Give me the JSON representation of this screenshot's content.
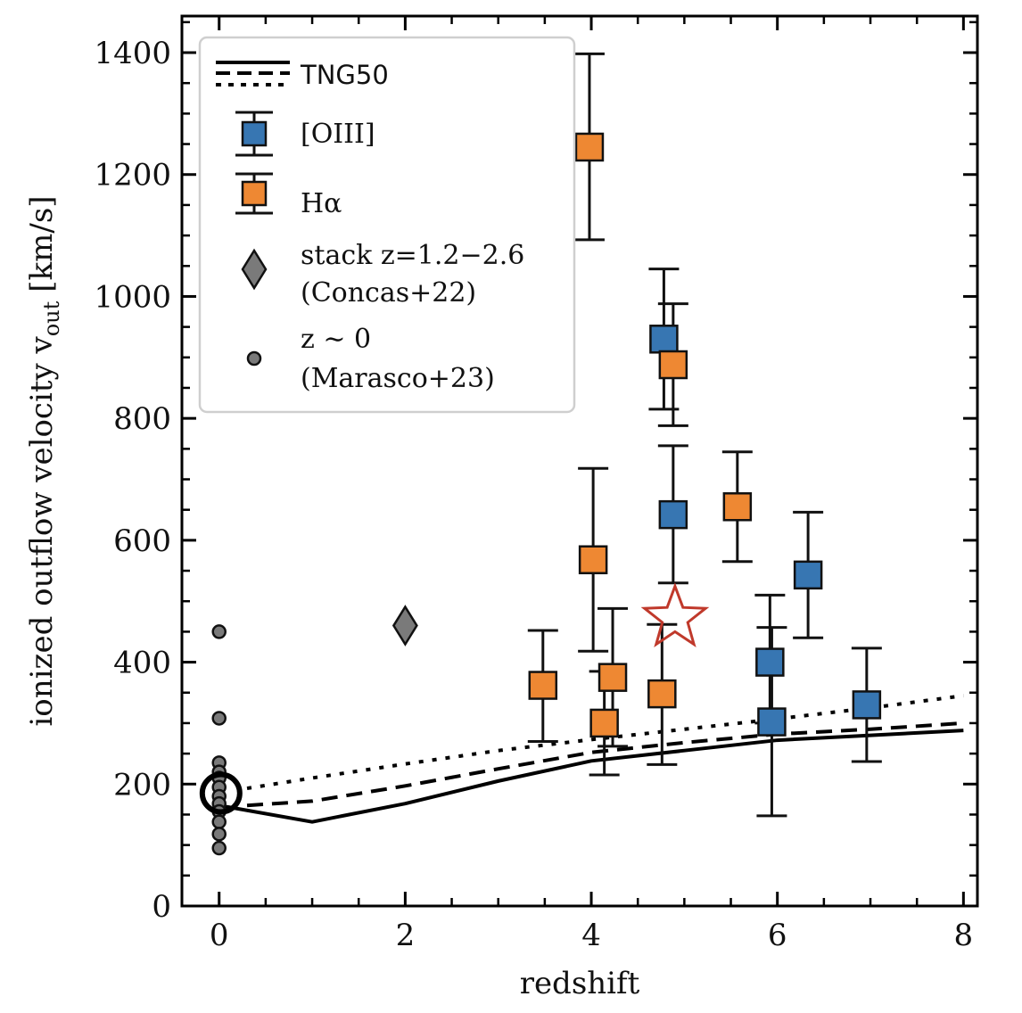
{
  "chart_data": {
    "type": "scatter",
    "xlabel": "redshift",
    "ylabel": "ionized outflow velocity v",
    "ylabel_sub": "out",
    "ylabel_unit": "[km/s]",
    "xlim": [
      -0.4,
      8.15
    ],
    "ylim": [
      0,
      1460
    ],
    "x_ticks": [
      "0",
      "2",
      "4",
      "6",
      "8"
    ],
    "y_ticks": [
      "0",
      "200",
      "400",
      "600",
      "800",
      "1000",
      "1200",
      "1400"
    ],
    "grid": false,
    "legend_position": "top-left",
    "colors": {
      "oiii": "#3776b2",
      "halpha": "#ee8833",
      "stack": "#7a7a7a",
      "local": "#7a7a7a",
      "star": "#c0392b",
      "tng": "#000000"
    },
    "legend": {
      "tng": "TNG50",
      "oiii": "[OIII]",
      "halpha": "Hα",
      "stack_line1": "stack z=1.2−2.6",
      "stack_line2": "(Concas+22)",
      "local_line1": "z ∼ 0",
      "local_line2": "(Marasco+23)"
    },
    "series": [
      {
        "name": "TNG50",
        "style": "solid",
        "x": [
          0,
          1,
          2,
          3,
          4,
          5,
          6,
          7,
          8
        ],
        "y": [
          165,
          138,
          168,
          205,
          238,
          255,
          272,
          280,
          288
        ]
      },
      {
        "name": "TNG50",
        "style": "dashed",
        "x": [
          0.3,
          1,
          2,
          3,
          4,
          5,
          6,
          7,
          8
        ],
        "y": [
          165,
          172,
          197,
          225,
          252,
          268,
          282,
          290,
          300
        ]
      },
      {
        "name": "TNG50",
        "style": "dotted",
        "x": [
          0.3,
          1,
          2,
          3,
          4,
          5,
          6,
          7,
          8
        ],
        "y": [
          193,
          210,
          233,
          255,
          273,
          290,
          307,
          325,
          345
        ]
      },
      {
        "name": "[OIII]",
        "marker": "square",
        "points": [
          {
            "x": 4.78,
            "y": 930,
            "lo": 815,
            "hi": 1045
          },
          {
            "x": 4.88,
            "y": 642,
            "lo": 530,
            "hi": 755
          },
          {
            "x": 5.92,
            "y": 400,
            "lo": 300,
            "hi": 510
          },
          {
            "x": 5.94,
            "y": 302,
            "lo": 148,
            "hi": 457
          },
          {
            "x": 6.33,
            "y": 543,
            "lo": 440,
            "hi": 646
          },
          {
            "x": 6.96,
            "y": 330,
            "lo": 237,
            "hi": 423
          }
        ]
      },
      {
        "name": "Hα",
        "marker": "square",
        "points": [
          {
            "x": 3.48,
            "y": 362,
            "lo": 270,
            "hi": 452
          },
          {
            "x": 3.98,
            "y": 1245,
            "lo": 1093,
            "hi": 1398
          },
          {
            "x": 4.02,
            "y": 568,
            "lo": 418,
            "hi": 718
          },
          {
            "x": 4.14,
            "y": 300,
            "lo": 215,
            "hi": 385
          },
          {
            "x": 4.23,
            "y": 375,
            "lo": 262,
            "hi": 488
          },
          {
            "x": 4.76,
            "y": 348,
            "lo": 232,
            "hi": 462
          },
          {
            "x": 4.88,
            "y": 888,
            "lo": 788,
            "hi": 988
          },
          {
            "x": 5.57,
            "y": 655,
            "lo": 565,
            "hi": 745
          }
        ]
      },
      {
        "name": "stack z=1.2−2.6 (Concas+22)",
        "marker": "diamond",
        "points": [
          {
            "x": 2.0,
            "y": 460
          }
        ]
      },
      {
        "name": "z ∼ 0 (Marasco+23)",
        "marker": "circle",
        "points": [
          {
            "x": 0,
            "y": 450
          },
          {
            "x": 0,
            "y": 308
          },
          {
            "x": 0,
            "y": 235
          },
          {
            "x": 0,
            "y": 220
          },
          {
            "x": 0,
            "y": 210
          },
          {
            "x": 0,
            "y": 195
          },
          {
            "x": 0,
            "y": 180
          },
          {
            "x": 0,
            "y": 168
          },
          {
            "x": 0,
            "y": 155
          },
          {
            "x": 0,
            "y": 138
          },
          {
            "x": 0,
            "y": 118
          },
          {
            "x": 0,
            "y": 95
          }
        ]
      }
    ],
    "highlight_markers": [
      {
        "marker": "star",
        "x": 4.9,
        "y": 472
      },
      {
        "marker": "open-circle",
        "x": 0.02,
        "y": 185
      }
    ]
  }
}
